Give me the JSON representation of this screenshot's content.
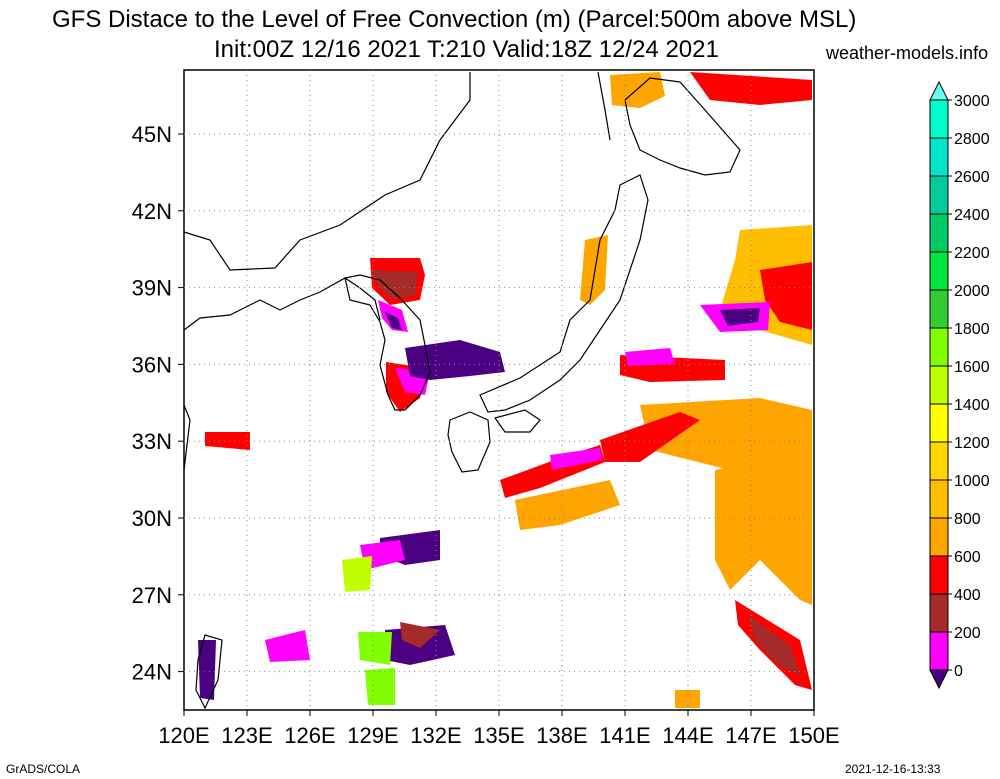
{
  "title": {
    "line1": "GFS Distace to the Level of Free Convection (m) (Parcel:500m above MSL)",
    "line2": "Init:00Z 12/16 2021 T:210 Valid:18Z 12/24 2021"
  },
  "site": "weather-models.info",
  "footer": {
    "left": "GrADS/COLA",
    "right": "2021-12-16-13:33"
  },
  "map": {
    "projection": "lat-lon",
    "lon_range": [
      120,
      150
    ],
    "lat_range": [
      22.5,
      47.5
    ],
    "lon_ticks": [
      "120E",
      "123E",
      "126E",
      "129E",
      "132E",
      "135E",
      "138E",
      "141E",
      "144E",
      "147E",
      "150E"
    ],
    "lat_ticks": [
      "24N",
      "27N",
      "30N",
      "33N",
      "36N",
      "39N",
      "42N",
      "45N"
    ],
    "gridlines": "dotted"
  },
  "colorbar": {
    "levels": [
      "0",
      "200",
      "400",
      "600",
      "800",
      "1000",
      "1200",
      "1400",
      "1600",
      "1800",
      "2000",
      "2200",
      "2400",
      "2600",
      "2800",
      "3000"
    ],
    "colors": [
      "#4b0082",
      "#ff00ff",
      "#a52a2a",
      "#ff0000",
      "#ffa500",
      "#ffbf00",
      "#ffd700",
      "#ffff00",
      "#bfff00",
      "#80ff00",
      "#33cc33",
      "#00e640",
      "#00cc66",
      "#00cc99",
      "#00e6cc",
      "#00ffcc",
      "#66ffee"
    ]
  }
}
